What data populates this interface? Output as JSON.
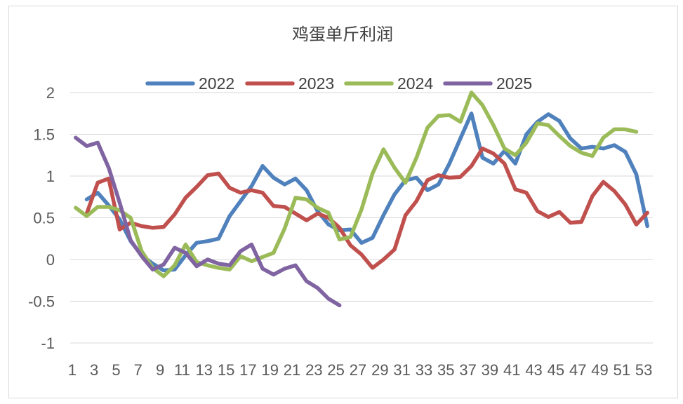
{
  "chart_data": {
    "type": "line",
    "title": "鸡蛋单斤利润",
    "xlabel": "",
    "ylabel": "",
    "ylim": [
      -1,
      2
    ],
    "yticks": [
      -1,
      -0.5,
      0,
      0.5,
      1,
      1.5,
      2
    ],
    "ytick_labels": [
      "-1",
      "-0.5",
      "0",
      "0.5",
      "1",
      "1.5",
      "2"
    ],
    "x_tick_labels": [
      "1",
      "3",
      "5",
      "7",
      "9",
      "11",
      "13",
      "15",
      "17",
      "19",
      "21",
      "23",
      "25",
      "27",
      "29",
      "31",
      "33",
      "35",
      "37",
      "39",
      "41",
      "43",
      "45",
      "47",
      "49",
      "51",
      "53"
    ],
    "x_tick_values": [
      1,
      3,
      5,
      7,
      9,
      11,
      13,
      15,
      17,
      19,
      21,
      23,
      25,
      27,
      29,
      31,
      33,
      35,
      37,
      39,
      41,
      43,
      45,
      47,
      49,
      51,
      53
    ],
    "x_range": [
      1,
      53
    ],
    "grid": true,
    "legend_position": "top",
    "series": [
      {
        "name": "2022",
        "color": "#4f81bd",
        "start_x": 2,
        "values": [
          0.72,
          0.8,
          0.65,
          0.48,
          0.22,
          0.05,
          -0.05,
          -0.13,
          -0.12,
          0.05,
          0.2,
          0.22,
          0.25,
          0.52,
          0.7,
          0.88,
          1.12,
          0.98,
          0.9,
          0.97,
          0.83,
          0.58,
          0.42,
          0.35,
          0.36,
          0.2,
          0.26,
          0.53,
          0.78,
          0.95,
          0.98,
          0.83,
          0.9,
          1.15,
          1.45,
          1.75,
          1.22,
          1.15,
          1.3,
          1.15,
          1.5,
          1.65,
          1.74,
          1.66,
          1.45,
          1.33,
          1.35,
          1.33,
          1.37,
          1.29,
          1.02,
          0.4
        ]
      },
      {
        "name": "2023",
        "color": "#c0504d",
        "start_x": 2,
        "values": [
          0.55,
          0.92,
          0.97,
          0.36,
          0.44,
          0.4,
          0.38,
          0.39,
          0.54,
          0.74,
          0.87,
          1.01,
          1.03,
          0.86,
          0.8,
          0.83,
          0.8,
          0.64,
          0.63,
          0.55,
          0.47,
          0.55,
          0.5,
          0.38,
          0.17,
          0.06,
          -0.1,
          0.0,
          0.12,
          0.53,
          0.7,
          0.95,
          1.01,
          0.98,
          0.99,
          1.12,
          1.33,
          1.27,
          1.15,
          0.84,
          0.8,
          0.58,
          0.51,
          0.57,
          0.44,
          0.45,
          0.76,
          0.93,
          0.82,
          0.66,
          0.42,
          0.56
        ]
      },
      {
        "name": "2024",
        "color": "#9bbb59",
        "start_x": 1,
        "values": [
          0.62,
          0.52,
          0.63,
          0.63,
          0.59,
          0.5,
          0.1,
          -0.1,
          -0.2,
          -0.07,
          0.18,
          -0.03,
          -0.07,
          -0.1,
          -0.12,
          0.04,
          -0.02,
          0.03,
          0.08,
          0.37,
          0.74,
          0.72,
          0.62,
          0.56,
          0.24,
          0.27,
          0.6,
          1.03,
          1.32,
          1.1,
          0.92,
          1.22,
          1.58,
          1.72,
          1.73,
          1.65,
          2.0,
          1.85,
          1.61,
          1.33,
          1.25,
          1.4,
          1.63,
          1.61,
          1.48,
          1.36,
          1.28,
          1.24,
          1.46,
          1.56,
          1.56,
          1.53
        ]
      },
      {
        "name": "2025",
        "color": "#8064a2",
        "start_x": 1,
        "values": [
          1.46,
          1.36,
          1.4,
          1.1,
          0.68,
          0.23,
          0.04,
          -0.12,
          -0.06,
          0.14,
          0.08,
          -0.08,
          0.0,
          -0.05,
          -0.07,
          0.1,
          0.18,
          -0.11,
          -0.18,
          -0.11,
          -0.07,
          -0.26,
          -0.34,
          -0.47,
          -0.55
        ]
      }
    ]
  }
}
